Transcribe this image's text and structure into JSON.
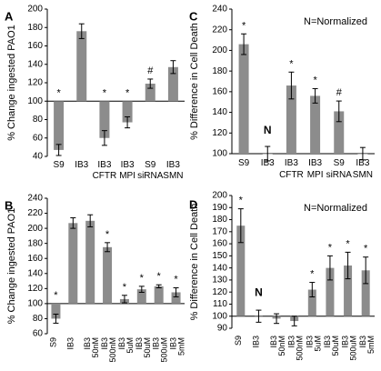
{
  "figure": {
    "background": "#ffffff",
    "bar_color": "#8c8c8c",
    "axis_color": "#000000"
  },
  "chart_data": [
    {
      "panel": "A",
      "type": "bar",
      "ylabel": "% Change ingested PAO1",
      "ylim": [
        40,
        200
      ],
      "yticks": [
        40,
        60,
        80,
        100,
        120,
        140,
        160,
        180,
        200
      ],
      "baseline": 100,
      "categories": [
        [
          "S9"
        ],
        [
          "IB3"
        ],
        [
          "IB3",
          "CFTR"
        ],
        [
          "IB3",
          "MPI"
        ],
        [
          "S9",
          "siRNA"
        ],
        [
          "IB3",
          "SMN"
        ]
      ],
      "values": [
        47,
        176,
        60,
        77,
        119,
        137
      ],
      "errors": [
        6,
        8,
        8,
        6,
        5,
        7
      ],
      "annotations": [
        "*",
        "",
        "*",
        "*",
        "#",
        ""
      ],
      "legend": "",
      "grid": false
    },
    {
      "panel": "B",
      "type": "bar",
      "ylabel": "% Change ingested PAO1",
      "ylim": [
        60,
        240
      ],
      "yticks": [
        60,
        80,
        100,
        120,
        140,
        160,
        180,
        200,
        220,
        240
      ],
      "baseline": 100,
      "categories": [
        [
          "S9"
        ],
        [
          "IB3"
        ],
        [
          "IB3",
          "50nM"
        ],
        [
          "IB3",
          "500nM"
        ],
        [
          "IB3",
          "5uM"
        ],
        [
          "IB3",
          "50uM"
        ],
        [
          "IB3",
          "500uM"
        ],
        [
          "IB3",
          "5mM"
        ]
      ],
      "values": [
        80,
        207,
        210,
        175,
        106,
        119,
        123,
        115
      ],
      "errors": [
        6,
        7,
        8,
        6,
        5,
        4,
        2,
        6
      ],
      "annotations": [
        "*",
        "",
        "",
        "*",
        "*",
        "*",
        "*",
        "*"
      ],
      "legend": "",
      "grid": false
    },
    {
      "panel": "C",
      "type": "bar",
      "ylabel": "% Difference in Cell Death",
      "ylim": [
        100,
        240
      ],
      "yticks": [
        100,
        120,
        140,
        160,
        180,
        200,
        220,
        240
      ],
      "baseline": 100,
      "categories": [
        [
          "S9"
        ],
        [
          "IB3"
        ],
        [
          "IB3",
          "CFTR"
        ],
        [
          "IB3",
          "MPI"
        ],
        [
          "S9",
          "siRNA"
        ],
        [
          "IB3",
          "SMN"
        ]
      ],
      "values": [
        206,
        100,
        166,
        156,
        141,
        100
      ],
      "errors": [
        10,
        7,
        13,
        7,
        10,
        6
      ],
      "annotations": [
        "*",
        "N",
        "*",
        "*",
        "#",
        ""
      ],
      "legend": "N=Normalized",
      "grid": false
    },
    {
      "panel": "D",
      "type": "bar",
      "ylabel": "% Difference in Cell Death",
      "ylim": [
        90,
        200
      ],
      "yticks": [
        90,
        100,
        110,
        120,
        130,
        140,
        150,
        160,
        170,
        180,
        190,
        200
      ],
      "baseline": 100,
      "categories": [
        [
          "S9"
        ],
        [
          "IB3"
        ],
        [
          "IB3",
          "50nM"
        ],
        [
          "IB3",
          "500nM"
        ],
        [
          "IB3",
          "5uM"
        ],
        [
          "IB3",
          "50uM"
        ],
        [
          "IB3",
          "500uM"
        ],
        [
          "IB3",
          "5mM"
        ]
      ],
      "values": [
        175,
        100,
        98,
        96,
        122,
        140,
        142,
        138
      ],
      "errors": [
        14,
        5,
        4,
        4,
        6,
        10,
        11,
        11
      ],
      "annotations": [
        "*",
        "N",
        "",
        "",
        "*",
        "*",
        "*",
        "*"
      ],
      "legend": "N=Normalized",
      "grid": false
    }
  ]
}
